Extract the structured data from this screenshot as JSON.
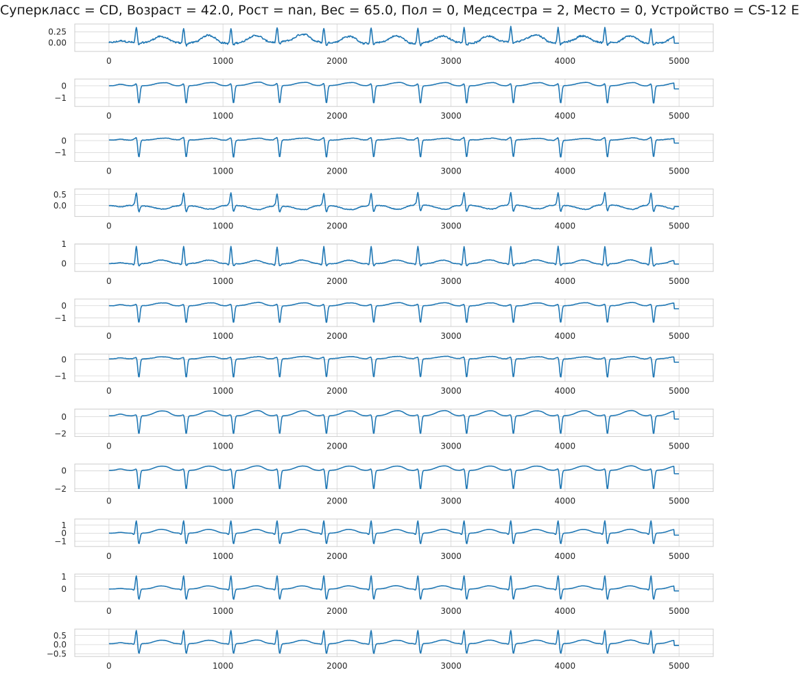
{
  "figure": {
    "title": "Суперкласс = CD, Возраст = 42.0, Рост = nan, Вес = 65.0, Пол = 0, Медсестра = 2, Место = 0, Устройство = CS-12   E"
  },
  "chart_data": {
    "type": "line",
    "x": {
      "start": 0,
      "end": 4999,
      "n": 5000
    },
    "xlim": [
      -300,
      5300
    ],
    "xticks": [
      0,
      1000,
      2000,
      3000,
      4000,
      5000
    ],
    "grid": true,
    "colors": {
      "line": "#1f77b4",
      "grid": "#d4d4d4",
      "spine": "#cccccc",
      "text": "#262626"
    },
    "beats": [
      0.048,
      0.131,
      0.214,
      0.295,
      0.377,
      0.46,
      0.542,
      0.623,
      0.705,
      0.788,
      0.87,
      0.951
    ],
    "leads": [
      {
        "ylim": [
          -0.2,
          0.43
        ],
        "yticks": [
          0.0,
          0.25
        ],
        "ytick_labels": [
          "0.00",
          "0.25"
        ],
        "base": 0.0,
        "p": 0.03,
        "q": -0.02,
        "r": 0.34,
        "s": -0.06,
        "t": 0.15,
        "noise": 0.035
      },
      {
        "ylim": [
          -1.7,
          0.55
        ],
        "yticks": [
          -1,
          0
        ],
        "ytick_labels": [
          "−1",
          "0"
        ],
        "base": 0.0,
        "p": 0.12,
        "q": 0.05,
        "r": 0.2,
        "s": -1.45,
        "t": 0.22,
        "noise": 0.015
      },
      {
        "ylim": [
          -1.75,
          0.55
        ],
        "yticks": [
          -1,
          0
        ],
        "ytick_labels": [
          "−1",
          "0"
        ],
        "base": 0.05,
        "p": 0.08,
        "q": 0.1,
        "r": 0.25,
        "s": -1.45,
        "t": 0.12,
        "noise": 0.03
      },
      {
        "ylim": [
          -0.5,
          0.75
        ],
        "yticks": [
          0.0,
          0.5
        ],
        "ytick_labels": [
          "0.0",
          "0.5"
        ],
        "base": 0.0,
        "p": -0.07,
        "q": 0.05,
        "r": 0.58,
        "s": -0.28,
        "t": -0.15,
        "noise": 0.03
      },
      {
        "ylim": [
          -0.4,
          1.0
        ],
        "yticks": [
          0,
          1
        ],
        "ytick_labels": [
          "0",
          "1"
        ],
        "base": 0.0,
        "p": 0.04,
        "q": -0.08,
        "r": 0.88,
        "s": -0.12,
        "t": 0.18,
        "noise": 0.025
      },
      {
        "ylim": [
          -1.7,
          0.55
        ],
        "yticks": [
          -1,
          0
        ],
        "ytick_labels": [
          "−1",
          "0"
        ],
        "base": 0.0,
        "p": 0.1,
        "q": 0.05,
        "r": 0.15,
        "s": -1.4,
        "t": 0.22,
        "noise": 0.02
      },
      {
        "ylim": [
          -1.35,
          0.35
        ],
        "yticks": [
          -1,
          0
        ],
        "ytick_labels": [
          "−1",
          "0"
        ],
        "base": 0.05,
        "p": 0.06,
        "q": 0.05,
        "r": 0.12,
        "s": -1.15,
        "t": 0.12,
        "noise": 0.02
      },
      {
        "ylim": [
          -2.35,
          0.9
        ],
        "yticks": [
          -2,
          0
        ],
        "ytick_labels": [
          "−2",
          "0"
        ],
        "base": 0.1,
        "p": 0.2,
        "q": 0.05,
        "r": 0.15,
        "s": -2.15,
        "t": 0.55,
        "noise": 0.01
      },
      {
        "ylim": [
          -2.3,
          0.75
        ],
        "yticks": [
          -2,
          0
        ],
        "ytick_labels": [
          "−2",
          "0"
        ],
        "base": 0.05,
        "p": 0.15,
        "q": 0.05,
        "r": 0.2,
        "s": -2.1,
        "t": 0.45,
        "noise": 0.01
      },
      {
        "ylim": [
          -1.65,
          1.75
        ],
        "yticks": [
          -1,
          0,
          1
        ],
        "ytick_labels": [
          "−1",
          "0",
          "1"
        ],
        "base": 0.0,
        "p": 0.1,
        "q": -0.2,
        "r": 1.6,
        "s": -1.35,
        "t": 0.45,
        "noise": 0.01
      },
      {
        "ylim": [
          -1.0,
          1.2
        ],
        "yticks": [
          0,
          1
        ],
        "ytick_labels": [
          "0",
          "1"
        ],
        "base": 0.0,
        "p": 0.05,
        "q": -0.1,
        "r": 1.1,
        "s": -0.85,
        "t": 0.25,
        "noise": 0.01
      },
      {
        "ylim": [
          -0.65,
          0.85
        ],
        "yticks": [
          -0.5,
          0.0,
          0.5
        ],
        "ytick_labels": [
          "−0.5",
          "0.0",
          "0.5"
        ],
        "base": 0.05,
        "p": 0.05,
        "q": -0.05,
        "r": 0.75,
        "s": -0.55,
        "t": 0.18,
        "noise": 0.01
      }
    ]
  }
}
